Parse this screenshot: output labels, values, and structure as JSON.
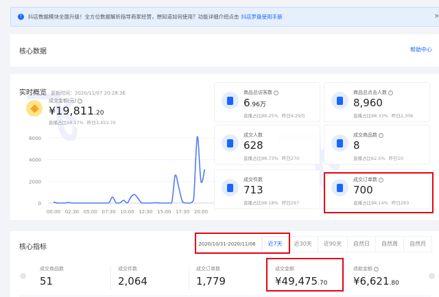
{
  "banner": {
    "text": "抖店数据模块全面升级！全方位数据解析指导商家经营，想知道如何使用？功能详细介绍点击",
    "link": "抖店罗盘使用手册",
    "close": "×"
  },
  "core_data": {
    "title": "核心数据",
    "help": "帮助中心"
  },
  "realtime": {
    "title": "实时概览",
    "updated": "更新时间：2020/11/07 20:28:36",
    "gmv": {
      "label": "成交金额(元)",
      "value": "¥19,811",
      "decimal": ".20",
      "ratio": "直播占比98.17%",
      "yesterday": "昨日3,453.70"
    },
    "tiles": [
      {
        "label": "商品总访客数",
        "value": "6",
        "decimal": ".96万",
        "ratio": "直播占比88.25%",
        "yesterday": "昨日4.29万"
      },
      {
        "label": "商品总点击人数",
        "value": "8,960",
        "decimal": "",
        "ratio": "直播占比98.33%",
        "yesterday": "昨日2,306"
      },
      {
        "label": "成交人数",
        "value": "628",
        "decimal": "",
        "ratio": "直播占比98.73%",
        "yesterday": "昨日270"
      },
      {
        "label": "成交商品数",
        "value": "8",
        "decimal": "",
        "ratio": "直播占比62.5%",
        "yesterday": "昨日10"
      },
      {
        "label": "成交件数",
        "value": "713",
        "decimal": "",
        "ratio": "直播占比98.18%",
        "yesterday": "昨日297"
      },
      {
        "label": "成交订单数",
        "value": "700",
        "decimal": "",
        "ratio": "直播占比98.14%",
        "yesterday": "昨日283"
      }
    ]
  },
  "chart_data": {
    "type": "line",
    "x_ticks": [
      "00:00",
      "02:30",
      "05:00",
      "07:30",
      "10:00",
      "12:30",
      "15:00",
      "17:30",
      "20:00"
    ],
    "y_ticks": [
      "0",
      "2000",
      "4000",
      "6000"
    ],
    "ylim": [
      0,
      6500
    ],
    "grid": true,
    "x_hours": [
      0,
      0.5,
      1,
      1.5,
      2,
      2.5,
      3,
      4,
      5,
      6,
      7,
      7.5,
      8,
      8.5,
      9,
      9.5,
      10,
      10.5,
      11,
      11.5,
      12,
      13,
      14,
      14.5,
      15,
      16,
      16.5,
      17,
      17.5,
      18,
      18.5,
      19,
      19.5,
      20,
      20.5
    ],
    "values": [
      100,
      0,
      0,
      0,
      50,
      0,
      0,
      0,
      0,
      0,
      0,
      0,
      550,
      0,
      0,
      250,
      0,
      550,
      780,
      400,
      0,
      0,
      30,
      0,
      0,
      0,
      2550,
      1400,
      100,
      0,
      0,
      300,
      6100,
      2000,
      3100
    ]
  },
  "core_metrics": {
    "title": "核心指标",
    "date_range": "2020/10/31-2020/11/06",
    "tabs": [
      "近7天",
      "近30天",
      "近90天",
      "自然日",
      "自然周",
      "自然月"
    ],
    "items": [
      {
        "label": "成交商品数",
        "value": "51",
        "decimal": ""
      },
      {
        "label": "成交件数",
        "value": "2,064",
        "decimal": ""
      },
      {
        "label": "成交订单数",
        "value": "1,779",
        "decimal": ""
      },
      {
        "label": "成交金额",
        "value": "¥49,475",
        "decimal": ".70"
      },
      {
        "label": "退款金额",
        "value": "¥6,621",
        "decimal": ".80"
      }
    ]
  },
  "colors": {
    "accent": "#1966ff",
    "highlight": "#e60012",
    "line": "#4c7bf5"
  }
}
